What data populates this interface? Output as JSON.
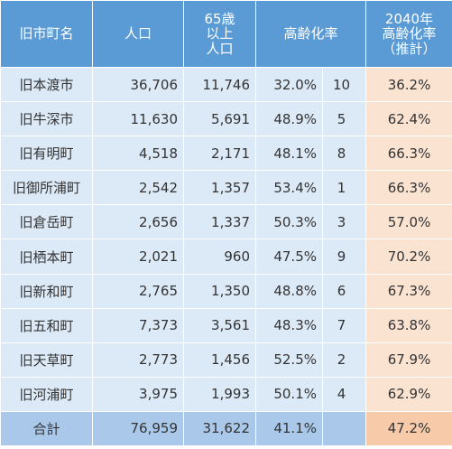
{
  "headers": {
    "name": "旧市町名",
    "population": "人口",
    "elderly": [
      "65歳",
      "以上",
      "人口"
    ],
    "aging_rate": "高齢化率",
    "projected": [
      "2040年",
      "高齢化率",
      "（推計）"
    ]
  },
  "rows": [
    {
      "name": "旧本渡市",
      "population": "36,706",
      "elderly": "11,746",
      "rate": "32.0%",
      "rank": "10",
      "projected": "36.2%"
    },
    {
      "name": "旧牛深市",
      "population": "11,630",
      "elderly": "5,691",
      "rate": "48.9%",
      "rank": "5",
      "projected": "62.4%"
    },
    {
      "name": "旧有明町",
      "population": "4,518",
      "elderly": "2,171",
      "rate": "48.1%",
      "rank": "8",
      "projected": "66.3%"
    },
    {
      "name": "旧御所浦町",
      "population": "2,542",
      "elderly": "1,357",
      "rate": "53.4%",
      "rank": "1",
      "projected": "66.3%"
    },
    {
      "name": "旧倉岳町",
      "population": "2,656",
      "elderly": "1,337",
      "rate": "50.3%",
      "rank": "3",
      "projected": "57.0%"
    },
    {
      "name": "旧栖本町",
      "population": "2,021",
      "elderly": "960",
      "rate": "47.5%",
      "rank": "9",
      "projected": "70.2%"
    },
    {
      "name": "旧新和町",
      "population": "2,765",
      "elderly": "1,350",
      "rate": "48.8%",
      "rank": "6",
      "projected": "67.3%"
    },
    {
      "name": "旧五和町",
      "population": "7,373",
      "elderly": "3,561",
      "rate": "48.3%",
      "rank": "7",
      "projected": "63.8%"
    },
    {
      "name": "旧天草町",
      "population": "2,773",
      "elderly": "1,456",
      "rate": "52.5%",
      "rank": "2",
      "projected": "67.9%"
    },
    {
      "name": "旧河浦町",
      "population": "3,975",
      "elderly": "1,993",
      "rate": "50.1%",
      "rank": "4",
      "projected": "62.9%"
    }
  ],
  "total": {
    "name": "合計",
    "population": "76,959",
    "elderly": "31,622",
    "rate": "41.1%",
    "rank": "",
    "projected": "47.2%"
  },
  "colors": {
    "header": "#5b9bd5",
    "row": "#dce9f7",
    "total": "#a9c8ea",
    "projected": "#fbe3d2",
    "projected_total": "#f7caa9"
  }
}
